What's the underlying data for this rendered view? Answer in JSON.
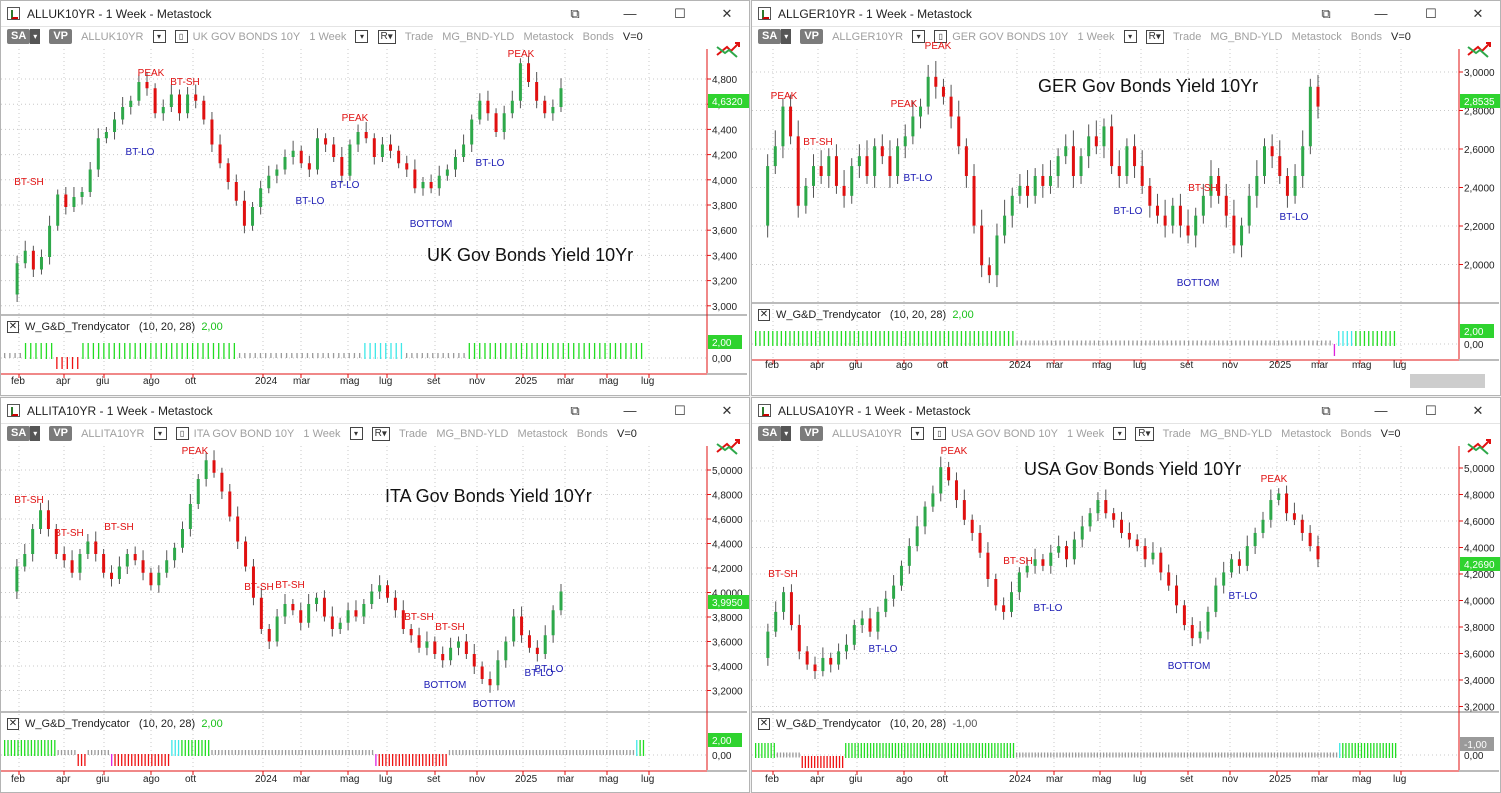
{
  "windows": [
    {
      "id": "uk",
      "title": "ALLUK10YR - 1 Week - Metastock",
      "toolbar": {
        "sa": "SA",
        "vp": "VP",
        "symbol": "ALLUK10YR",
        "name": "UK GOV BONDS 10Y",
        "period": "1 Week",
        "r": "R",
        "trade": "Trade",
        "expert": "MG_BND-YLD",
        "source": "Metastock",
        "group": "Bonds",
        "v": "V=0"
      },
      "chart_label": "UK Gov Bonds Yield 10Yr",
      "price_tag": "4,6320",
      "y_ticks": [
        "4,800",
        "4,600",
        "4,400",
        "4,200",
        "4,000",
        "3,800",
        "3,600",
        "3,400",
        "3,200",
        "3,000"
      ],
      "annotations": [
        {
          "text": "BT-SH",
          "type": "red"
        },
        {
          "text": "PEAK",
          "type": "red"
        },
        {
          "text": "BT-SH",
          "type": "red"
        },
        {
          "text": "BT-LO",
          "type": "blue"
        },
        {
          "text": "PEAK",
          "type": "red"
        },
        {
          "text": "BT-LO",
          "type": "blue"
        },
        {
          "text": "BT-LO",
          "type": "blue"
        },
        {
          "text": "BOTTOM",
          "type": "blue"
        },
        {
          "text": "BT-LO",
          "type": "blue"
        },
        {
          "text": "PEAK",
          "type": "red"
        }
      ],
      "indicator": {
        "name": "W_G&D_Trendycator",
        "params": "(10,  20,  28)",
        "value": "2,00",
        "tag": "2,00",
        "zero": "0,00"
      },
      "months": [
        "feb",
        "apr",
        "giu",
        "ago",
        "ott",
        "2024",
        "mar",
        "mag",
        "lug",
        "set",
        "nov",
        "2025",
        "mar",
        "mag",
        "lug"
      ]
    },
    {
      "id": "ger",
      "title": "ALLGER10YR - 1 Week - Metastock",
      "toolbar": {
        "sa": "SA",
        "vp": "VP",
        "symbol": "ALLGER10YR",
        "name": "GER GOV BONDS 10Y",
        "period": "1 Week",
        "r": "R",
        "trade": "Trade",
        "expert": "MG_BND-YLD",
        "source": "Metastock",
        "group": "Bonds",
        "v": "V=0"
      },
      "chart_label": "GER Gov Bonds Yield 10Yr",
      "price_tag": "2,8535",
      "y_ticks": [
        "3,0000",
        "2,8000",
        "2,6000",
        "2,4000",
        "2,2000",
        "2,0000"
      ],
      "annotations": [
        {
          "text": "PEAK",
          "type": "red"
        },
        {
          "text": "BT-SH",
          "type": "red"
        },
        {
          "text": "PEAK",
          "type": "red"
        },
        {
          "text": "PEAK",
          "type": "red"
        },
        {
          "text": "BT-LO",
          "type": "blue"
        },
        {
          "text": "BT-LO",
          "type": "blue"
        },
        {
          "text": "BT-SH",
          "type": "red"
        },
        {
          "text": "BOTTOM",
          "type": "blue"
        },
        {
          "text": "BT-LO",
          "type": "blue"
        }
      ],
      "indicator": {
        "name": "W_G&D_Trendycator",
        "params": "(10,  20,  28)",
        "value": "2,00",
        "tag": "2,00",
        "zero": "0,00"
      },
      "months": [
        "feb",
        "apr",
        "giu",
        "ago",
        "ott",
        "2024",
        "mar",
        "mag",
        "lug",
        "set",
        "nov",
        "2025",
        "mar",
        "mag",
        "lug"
      ]
    },
    {
      "id": "ita",
      "title": "ALLITA10YR - 1 Week - Metastock",
      "toolbar": {
        "sa": "SA",
        "vp": "VP",
        "symbol": "ALLITA10YR",
        "name": "ITA GOV BOND 10Y",
        "period": "1 Week",
        "r": "R",
        "trade": "Trade",
        "expert": "MG_BND-YLD",
        "source": "Metastock",
        "group": "Bonds",
        "v": "V=0"
      },
      "chart_label": "ITA Gov Bonds Yield 10Yr",
      "price_tag": "3,9950",
      "y_ticks": [
        "5,0000",
        "4,8000",
        "4,6000",
        "4,4000",
        "4,2000",
        "4,0000",
        "3,8000",
        "3,6000",
        "3,4000",
        "3,2000"
      ],
      "annotations": [
        {
          "text": "BT-SH",
          "type": "red"
        },
        {
          "text": "BT-SH",
          "type": "red"
        },
        {
          "text": "BT-SH",
          "type": "red"
        },
        {
          "text": "PEAK",
          "type": "red"
        },
        {
          "text": "BT-SH",
          "type": "red"
        },
        {
          "text": "BT-SH",
          "type": "red"
        },
        {
          "text": "BT-SH",
          "type": "red"
        },
        {
          "text": "BT-SH",
          "type": "red"
        },
        {
          "text": "BOTTOM",
          "type": "blue"
        },
        {
          "text": "BOTTOM",
          "type": "blue"
        },
        {
          "text": "BT-LO",
          "type": "blue"
        },
        {
          "text": "BT-LO",
          "type": "blue"
        }
      ],
      "indicator": {
        "name": "W_G&D_Trendycator",
        "params": "(10,  20,  28)",
        "value": "2,00",
        "tag": "2,00",
        "zero": "0,00"
      },
      "months": [
        "feb",
        "apr",
        "giu",
        "ago",
        "ott",
        "2024",
        "mar",
        "mag",
        "lug",
        "set",
        "nov",
        "2025",
        "mar",
        "mag",
        "lug"
      ]
    },
    {
      "id": "usa",
      "title": "ALLUSA10YR - 1 Week - Metastock",
      "toolbar": {
        "sa": "SA",
        "vp": "VP",
        "symbol": "ALLUSA10YR",
        "name": "USA GOV BOND 10Y",
        "period": "1 Week",
        "r": "R",
        "trade": "Trade",
        "expert": "MG_BND-YLD",
        "source": "Metastock",
        "group": "Bonds",
        "v": "V=0"
      },
      "chart_label": "USA Gov Bonds Yield 10Yr",
      "price_tag": "4,2690",
      "y_ticks": [
        "5,0000",
        "4,8000",
        "4,6000",
        "4,4000",
        "4,2000",
        "4,0000",
        "3,8000",
        "3,6000",
        "3,4000",
        "3,2000"
      ],
      "annotations": [
        {
          "text": "BT-SH",
          "type": "red"
        },
        {
          "text": "PEAK",
          "type": "red"
        },
        {
          "text": "BT-LO",
          "type": "blue"
        },
        {
          "text": "BT-SH",
          "type": "red"
        },
        {
          "text": "BT-LO",
          "type": "blue"
        },
        {
          "text": "BOTTOM",
          "type": "blue"
        },
        {
          "text": "BT-LO",
          "type": "blue"
        },
        {
          "text": "PEAK",
          "type": "red"
        }
      ],
      "indicator": {
        "name": "W_G&D_Trendycator",
        "params": "(10,  20,  28)",
        "value": "-1,00",
        "tag": "-1,00",
        "zero": "0,00"
      },
      "months": [
        "feb",
        "apr",
        "giu",
        "ago",
        "ott",
        "2024",
        "mar",
        "mag",
        "lug",
        "set",
        "nov",
        "2025",
        "mar",
        "mag",
        "lug"
      ]
    }
  ],
  "colors": {
    "up": "#2ea84a",
    "down": "#e01010",
    "grid": "#c8c8c8",
    "axis_red": "#e01010",
    "tag_green": "#2fd32f",
    "label_red": "#e01010",
    "label_blue": "#1a1ab4",
    "ind_green": "#22dd22",
    "ind_gray": "#9a9a9a",
    "ind_cyan": "#3ee8e8",
    "ind_red": "#ee1111",
    "ind_magenta": "#dd22dd"
  },
  "icons": {
    "restore": "restore-icon",
    "minimize": "minimize-icon",
    "maximize": "maximize-icon",
    "close": "close-icon",
    "trade": "trade-arrows-icon"
  }
}
